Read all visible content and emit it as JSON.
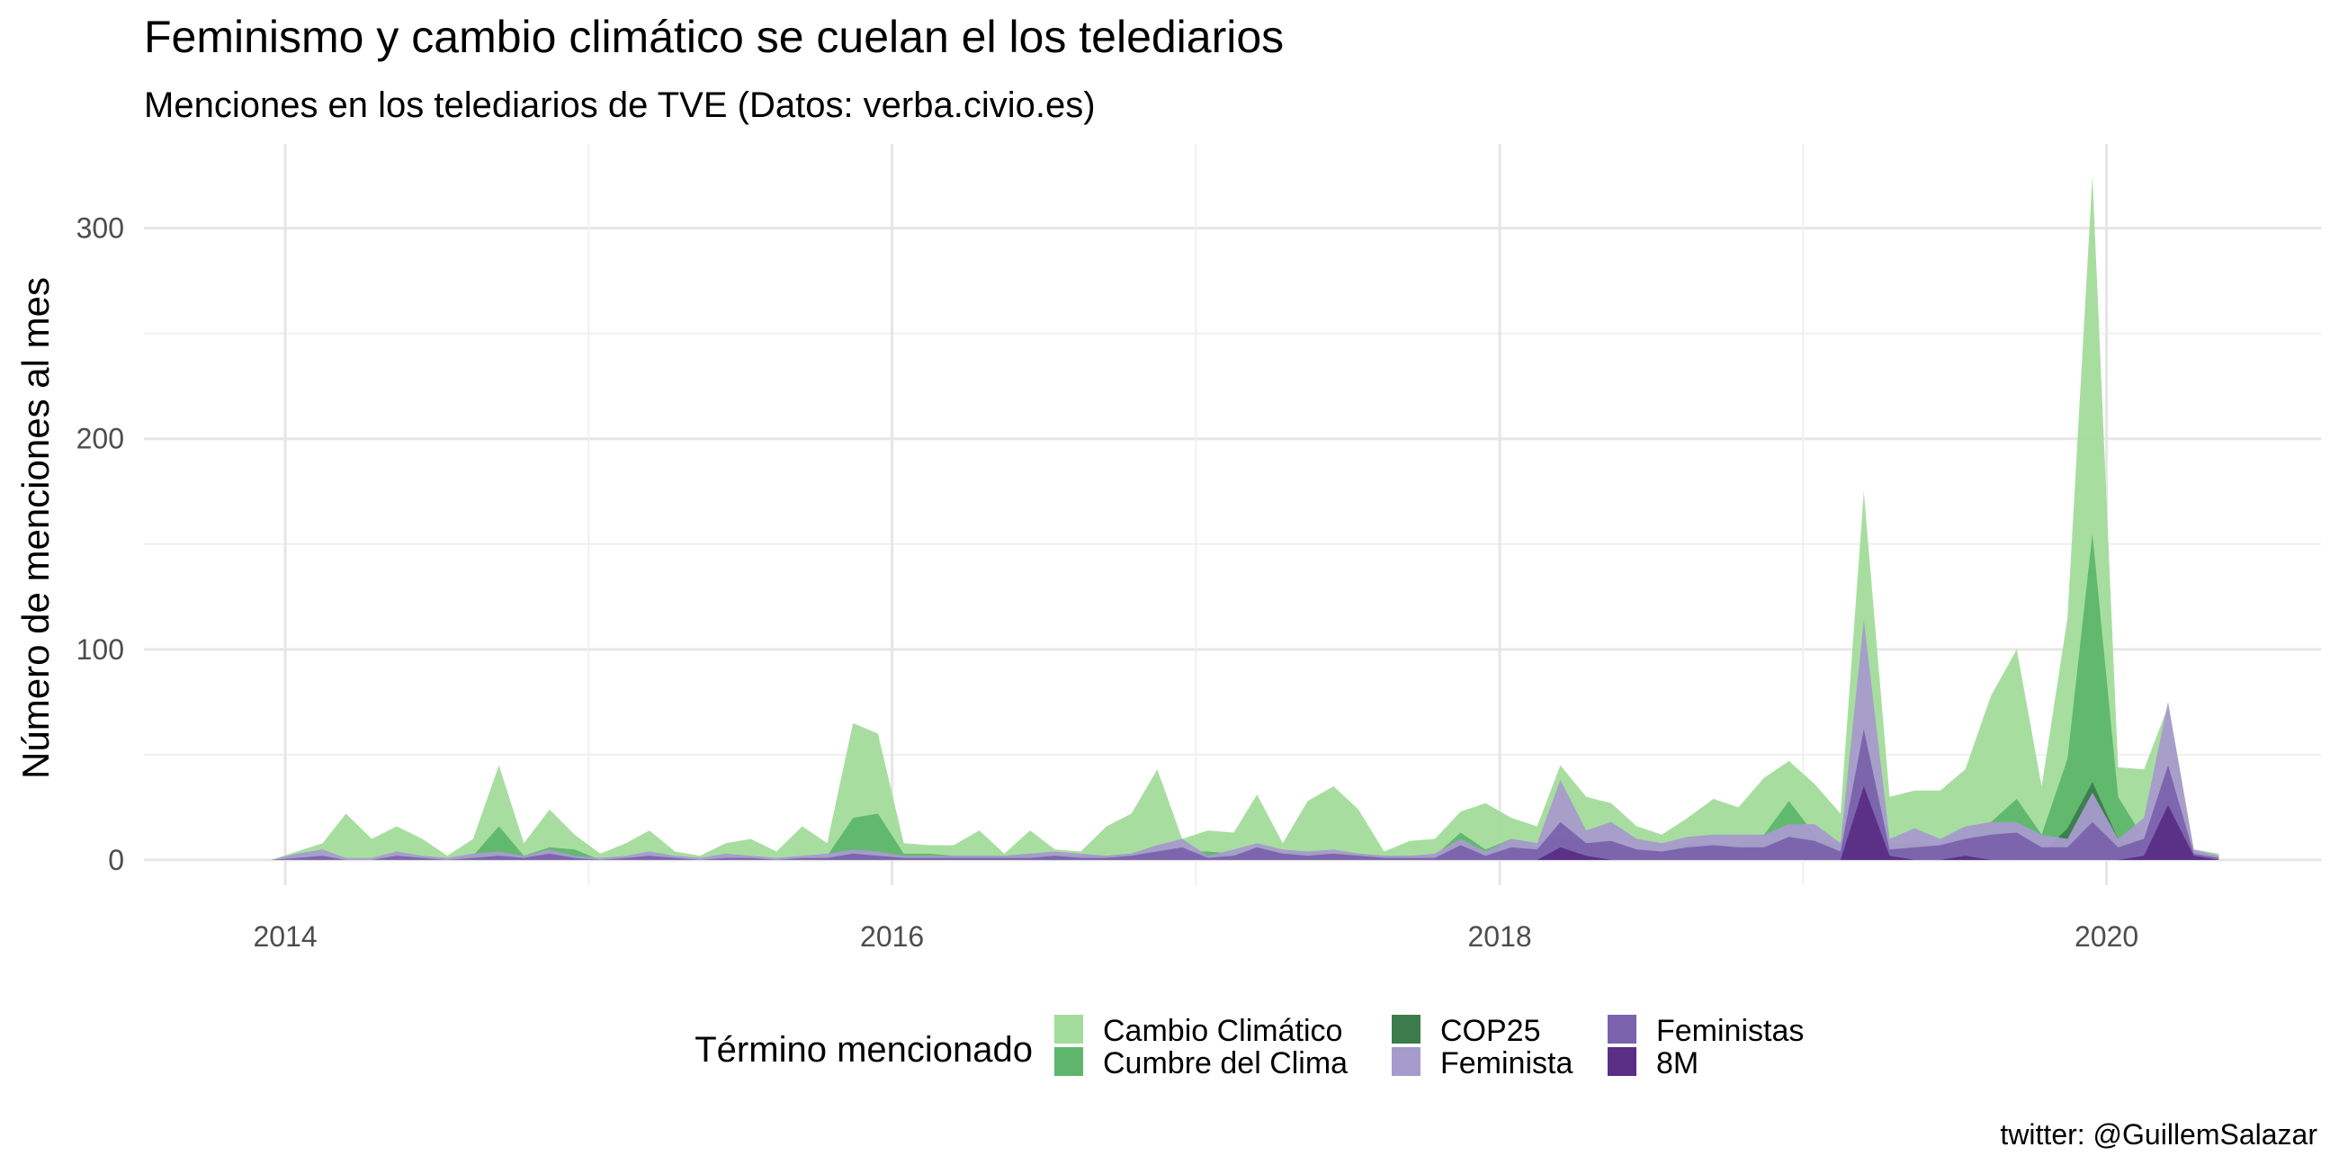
{
  "chart_data": {
    "type": "area",
    "title": "Feminismo y cambio climático se cuelan el los telediarios",
    "subtitle": "Menciones en los telediarios de TVE (Datos: verba.civio.es)",
    "xlabel": "",
    "ylabel": "Número de menciones al mes",
    "caption": "twitter: @GuillemSalazar",
    "xlim": [
      "2013-07-15",
      "2020-09-15"
    ],
    "ylim": [
      -12,
      340
    ],
    "x_ticks": [
      "2014-01-01",
      "2016-01-01",
      "2018-01-01",
      "2020-01-01"
    ],
    "x_tick_labels": [
      "2014",
      "2016",
      "2018",
      "2020"
    ],
    "y_ticks": [
      0,
      100,
      200,
      300
    ],
    "y_tick_labels": [
      "0",
      "100",
      "200",
      "300"
    ],
    "grid": true,
    "legend": {
      "title": "Término mencionado",
      "position": "bottom",
      "entries": [
        "Cambio Climático",
        "Cumbre del Clima",
        "COP25",
        "Feminista",
        "Feministas",
        "8M"
      ]
    },
    "colors": {
      "Cambio Climático": "#a2dc9b",
      "Cumbre del Clima": "#5db66c",
      "COP25": "#3b7b4c",
      "Feminista": "#a69bcc",
      "Feministas": "#7b62ad",
      "8M": "#5a2e85"
    },
    "x": [
      "2013-12",
      "2014-01",
      "2014-02",
      "2014-03",
      "2014-04",
      "2014-05",
      "2014-06",
      "2014-07",
      "2014-08",
      "2014-09",
      "2014-10",
      "2014-11",
      "2014-12",
      "2015-01",
      "2015-02",
      "2015-03",
      "2015-04",
      "2015-05",
      "2015-06",
      "2015-07",
      "2015-08",
      "2015-09",
      "2015-10",
      "2015-11",
      "2015-12",
      "2016-01",
      "2016-02",
      "2016-03",
      "2016-04",
      "2016-05",
      "2016-06",
      "2016-07",
      "2016-08",
      "2016-09",
      "2016-10",
      "2016-11",
      "2016-12",
      "2017-01",
      "2017-02",
      "2017-03",
      "2017-04",
      "2017-05",
      "2017-06",
      "2017-07",
      "2017-08",
      "2017-09",
      "2017-10",
      "2017-11",
      "2017-12",
      "2018-01",
      "2018-02",
      "2018-03",
      "2018-04",
      "2018-05",
      "2018-06",
      "2018-07",
      "2018-08",
      "2018-09",
      "2018-10",
      "2018-11",
      "2018-12",
      "2019-01",
      "2019-02",
      "2019-03",
      "2019-04",
      "2019-05",
      "2019-06",
      "2019-07",
      "2019-08",
      "2019-09",
      "2019-10",
      "2019-11",
      "2019-12",
      "2020-01",
      "2020-02",
      "2020-03",
      "2020-04",
      "2020-05"
    ],
    "series": [
      {
        "name": "Cambio Climático",
        "values": [
          0,
          4,
          8,
          22,
          10,
          16,
          10,
          2,
          10,
          45,
          8,
          24,
          12,
          3,
          8,
          14,
          4,
          2,
          8,
          10,
          4,
          16,
          8,
          65,
          60,
          8,
          7,
          7,
          14,
          3,
          14,
          5,
          4,
          16,
          22,
          43,
          10,
          14,
          13,
          31,
          8,
          28,
          35,
          24,
          4,
          9,
          10,
          23,
          27,
          20,
          16,
          45,
          30,
          27,
          16,
          12,
          20,
          29,
          25,
          39,
          47,
          36,
          22,
          175,
          30,
          33,
          33,
          43,
          78,
          100,
          35,
          115,
          325,
          44,
          43,
          73,
          5,
          3
        ]
      },
      {
        "name": "Cumbre del Clima",
        "values": [
          0,
          0,
          0,
          0,
          0,
          0,
          0,
          0,
          2,
          16,
          2,
          6,
          5,
          0,
          0,
          0,
          0,
          0,
          0,
          0,
          0,
          0,
          2,
          20,
          22,
          3,
          3,
          2,
          2,
          2,
          3,
          2,
          2,
          2,
          3,
          7,
          4,
          4,
          3,
          4,
          3,
          4,
          3,
          3,
          2,
          2,
          2,
          13,
          5,
          10,
          8,
          12,
          10,
          8,
          5,
          4,
          8,
          8,
          8,
          12,
          28,
          12,
          6,
          62,
          8,
          8,
          7,
          15,
          18,
          29,
          12,
          48,
          155,
          30,
          10,
          30,
          3,
          2
        ]
      },
      {
        "name": "COP25",
        "values": [
          0,
          0,
          0,
          0,
          0,
          0,
          0,
          0,
          0,
          0,
          0,
          0,
          0,
          0,
          0,
          0,
          0,
          0,
          0,
          0,
          0,
          0,
          0,
          0,
          0,
          0,
          0,
          0,
          0,
          0,
          0,
          0,
          0,
          0,
          0,
          0,
          0,
          0,
          0,
          0,
          0,
          0,
          0,
          0,
          0,
          0,
          0,
          0,
          0,
          0,
          0,
          0,
          0,
          0,
          0,
          0,
          0,
          0,
          0,
          0,
          0,
          0,
          0,
          0,
          0,
          0,
          0,
          0,
          0,
          0,
          3,
          15,
          37,
          10,
          4,
          6,
          0,
          0
        ]
      },
      {
        "name": "Feminista",
        "values": [
          0,
          3,
          5,
          1,
          1,
          4,
          2,
          1,
          3,
          4,
          2,
          5,
          2,
          1,
          2,
          4,
          2,
          1,
          3,
          2,
          1,
          2,
          3,
          5,
          4,
          2,
          2,
          2,
          2,
          2,
          3,
          4,
          3,
          2,
          3,
          7,
          10,
          2,
          5,
          8,
          5,
          4,
          5,
          3,
          2,
          2,
          3,
          10,
          4,
          10,
          8,
          38,
          14,
          18,
          10,
          8,
          11,
          12,
          12,
          12,
          17,
          17,
          8,
          114,
          10,
          15,
          10,
          16,
          18,
          18,
          12,
          10,
          32,
          10,
          20,
          75,
          5,
          2
        ]
      },
      {
        "name": "Feministas",
        "values": [
          0,
          1,
          2,
          0,
          0,
          2,
          1,
          0,
          1,
          2,
          1,
          3,
          1,
          0,
          1,
          2,
          1,
          0,
          1,
          1,
          0,
          1,
          1,
          3,
          2,
          1,
          1,
          1,
          1,
          1,
          1,
          2,
          1,
          1,
          2,
          4,
          6,
          1,
          2,
          6,
          3,
          2,
          3,
          2,
          1,
          1,
          1,
          7,
          2,
          6,
          5,
          18,
          8,
          9,
          5,
          4,
          6,
          7,
          6,
          6,
          11,
          9,
          4,
          62,
          5,
          6,
          7,
          10,
          12,
          13,
          6,
          6,
          18,
          6,
          10,
          45,
          3,
          1
        ]
      },
      {
        "name": "8M",
        "values": [
          0,
          0,
          0,
          0,
          0,
          0,
          0,
          0,
          0,
          0,
          0,
          0,
          0,
          0,
          0,
          0,
          0,
          0,
          0,
          0,
          0,
          0,
          0,
          0,
          0,
          0,
          0,
          0,
          0,
          0,
          0,
          0,
          0,
          0,
          0,
          0,
          0,
          0,
          0,
          0,
          0,
          0,
          0,
          0,
          0,
          0,
          0,
          0,
          0,
          0,
          0,
          6,
          2,
          0,
          0,
          0,
          0,
          0,
          0,
          0,
          0,
          0,
          0,
          35,
          2,
          0,
          0,
          2,
          0,
          0,
          0,
          0,
          0,
          0,
          2,
          26,
          2,
          0
        ]
      }
    ]
  }
}
